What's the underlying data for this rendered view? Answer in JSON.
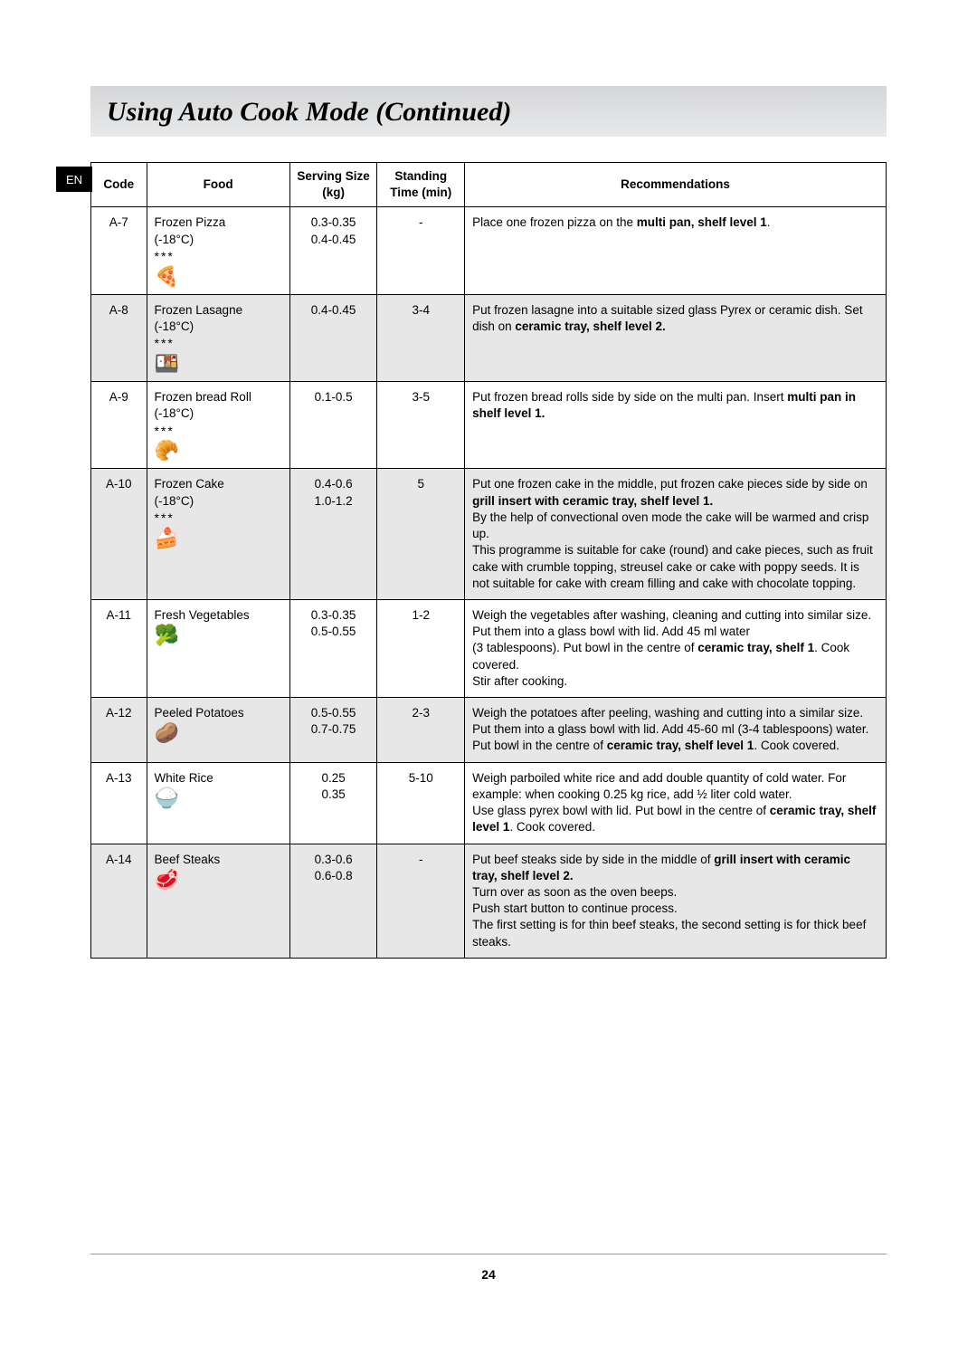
{
  "lang_tab": "EN",
  "title": "Using Auto Cook Mode (Continued)",
  "page_number": "24",
  "headers": {
    "code": "Code",
    "food": "Food",
    "size": "Serving Size (kg)",
    "time": "Standing Time (min)",
    "rec": "Recommendations"
  },
  "rows": [
    {
      "code": "A-7",
      "food": "Frozen Pizza",
      "temp": "(-18°C)",
      "stars": "***",
      "icon": "🍕",
      "size": "0.3-0.35\n0.4-0.45",
      "time": "-",
      "rec": "Place one frozen pizza on the <b>multi pan, shelf level 1</b>.",
      "shade": false
    },
    {
      "code": "A-8",
      "food": "Frozen Lasagne",
      "temp": "(-18°C)",
      "stars": "***",
      "icon": "🍱",
      "size": "0.4-0.45",
      "time": "3-4",
      "rec": "Put frozen lasagne into a suitable sized glass Pyrex or ceramic dish. Set dish on <b>ceramic tray, shelf level 2.</b>",
      "shade": true
    },
    {
      "code": "A-9",
      "food": "Frozen bread Roll",
      "temp": "(-18°C)",
      "stars": "***",
      "icon": "🥐",
      "size": "0.1-0.5",
      "time": "3-5",
      "rec": "Put frozen bread rolls side by side on the multi pan. Insert <b>multi pan in shelf level 1.</b>",
      "shade": false
    },
    {
      "code": "A-10",
      "food": "Frozen Cake",
      "temp": "(-18°C)",
      "stars": "***",
      "icon": "🍰",
      "size": "0.4-0.6\n1.0-1.2",
      "time": "5",
      "rec": "Put one frozen cake in the middle, put frozen cake pieces side by side on <b>grill insert with ceramic tray, shelf level 1.</b><br>By the help of convectional oven mode the cake will be warmed and crisp up.<br>This programme is suitable for cake (round) and cake pieces, such as fruit cake with crumble topping, streusel cake or cake with poppy seeds. It is not suitable for cake with cream filling and cake with chocolate topping.",
      "shade": true
    },
    {
      "code": "A-11",
      "food": "Fresh Vegetables",
      "temp": "",
      "stars": "",
      "icon": "🥦",
      "size": "0.3-0.35\n0.5-0.55",
      "time": "1-2",
      "rec": "Weigh the vegetables after washing, cleaning and cutting into similar size. Put them into a glass bowl with lid. Add 45 ml water<br>(3 tablespoons). Put bowl in the centre of <b>ceramic tray, shelf 1</b>. Cook covered.<br>Stir after cooking.",
      "shade": false
    },
    {
      "code": "A-12",
      "food": "Peeled Potatoes",
      "temp": "",
      "stars": "",
      "icon": "🥔",
      "size": "0.5-0.55\n0.7-0.75",
      "time": "2-3",
      "rec": "Weigh the potatoes after peeling, washing and cutting into a similar size. Put them into a glass bowl with lid. Add 45-60 ml (3-4 tablespoons) water. Put bowl in the centre of <b>ceramic tray, shelf level 1</b>. Cook covered.",
      "shade": true
    },
    {
      "code": "A-13",
      "food": "White Rice",
      "temp": "",
      "stars": "",
      "icon": "🍚",
      "size": "0.25\n0.35",
      "time": "5-10",
      "rec": "Weigh parboiled white rice and add double quantity of cold water. For example: when cooking 0.25 kg rice, add ½ liter cold water.<br>Use glass pyrex bowl with lid. Put bowl in the centre of <b>ceramic tray, shelf level 1</b>. Cook covered.",
      "shade": false
    },
    {
      "code": "A-14",
      "food": "Beef Steaks",
      "temp": "",
      "stars": "",
      "icon": "🥩",
      "size": "0.3-0.6\n0.6-0.8",
      "time": "-",
      "rec": "Put beef steaks side by side in the middle of <b>grill insert with ceramic tray, shelf level 2.</b><br>Turn over as soon as the oven beeps.<br>Push start button to continue process.<br>The first setting is for thin beef steaks, the second setting is for thick beef steaks.",
      "shade": true
    }
  ]
}
